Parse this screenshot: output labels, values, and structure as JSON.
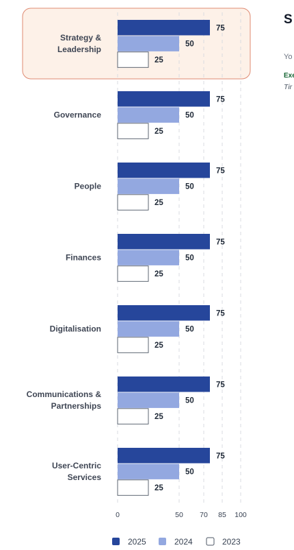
{
  "chart_data": {
    "type": "bar",
    "orientation": "horizontal",
    "categories": [
      "Strategy & Leadership",
      "Governance",
      "People",
      "Finances",
      "Digitalisation",
      "Communications & Partnerships",
      "User-Centric Services"
    ],
    "category_lines": [
      [
        "Strategy &",
        "Leadership"
      ],
      [
        "Governance"
      ],
      [
        "People"
      ],
      [
        "Finances"
      ],
      [
        "Digitalisation"
      ],
      [
        "Communications &",
        "Partnerships"
      ],
      [
        "User-Centric",
        "Services"
      ]
    ],
    "series": [
      {
        "name": "2025",
        "values": [
          75,
          75,
          75,
          75,
          75,
          75,
          75
        ],
        "color": "#26469b"
      },
      {
        "name": "2024",
        "values": [
          50,
          50,
          50,
          50,
          50,
          50,
          50
        ],
        "color": "#93a8e0"
      },
      {
        "name": "2023",
        "values": [
          25,
          25,
          25,
          25,
          25,
          25,
          25
        ],
        "color": "#ffffff"
      }
    ],
    "xticks": [
      0,
      50,
      70,
      85,
      100
    ],
    "xlim": [
      0,
      100
    ],
    "grid": "vertical dashed",
    "legend": "bottom",
    "highlighted_category": "Strategy & Leadership",
    "highlight_color": "#fdf1e8"
  },
  "side_panel": {
    "title": "S",
    "text": "Yo",
    "green_text": "Exe",
    "italic_text": "Tir"
  }
}
